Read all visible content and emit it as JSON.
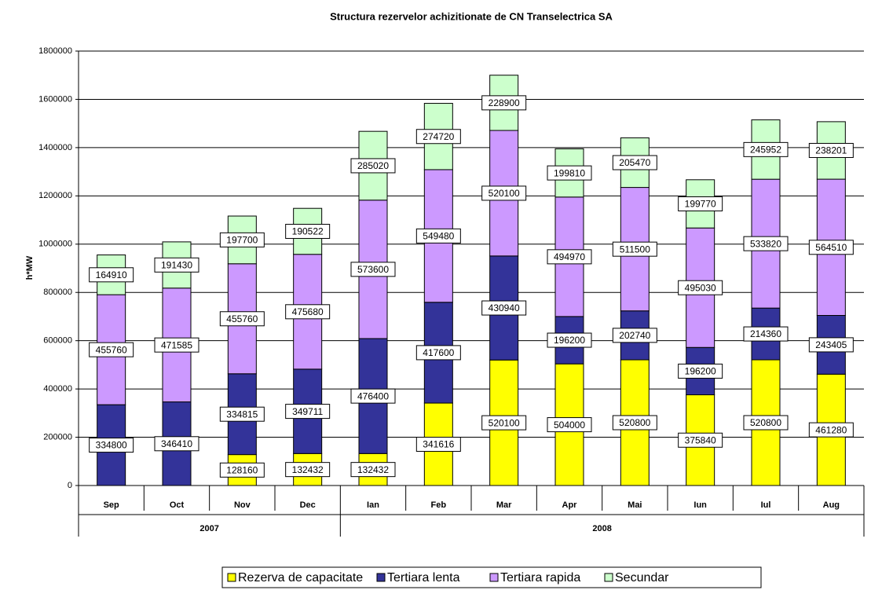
{
  "chart_data": {
    "type": "stacked_bar",
    "title": "Structura rezervelor achizitionate de CN Transelectrica SA",
    "y_label": "h*MW",
    "categories": [
      "Sep",
      "Oct",
      "Nov",
      "Dec",
      "Ian",
      "Feb",
      "Mar",
      "Apr",
      "Mai",
      "Iun",
      "Iul",
      "Aug"
    ],
    "category_groups": [
      "2007",
      "2007",
      "2007",
      "2007",
      "2008",
      "2008",
      "2008",
      "2008",
      "2008",
      "2008",
      "2008",
      "2008"
    ],
    "series": [
      {
        "name": "Rezerva de capacitate",
        "color": "#ffff00",
        "values": [
          null,
          null,
          128160,
          132432,
          132432,
          341616,
          520100,
          504000,
          520800,
          375840,
          520800,
          461280
        ]
      },
      {
        "name": "Tertiara lenta",
        "color": "#333399",
        "values": [
          334800,
          346410,
          334815,
          349711,
          476400,
          417600,
          430940,
          196200,
          202740,
          196200,
          214360,
          243405
        ]
      },
      {
        "name": "Tertiara rapida",
        "color": "#cc99ff",
        "values": [
          455760,
          471585,
          455760,
          475680,
          573600,
          549480,
          520100,
          494970,
          511500,
          495030,
          533820,
          564510
        ]
      },
      {
        "name": "Secundar",
        "color": "#ccffcc",
        "values": [
          164910,
          191430,
          197700,
          190522,
          285020,
          274720,
          228900,
          199810,
          205470,
          199770,
          245952,
          238201
        ]
      }
    ],
    "ylim": [
      0,
      1800000
    ],
    "yticks": [
      0,
      200000,
      400000,
      600000,
      800000,
      1000000,
      1200000,
      1400000,
      1600000,
      1800000
    ],
    "grid": true
  }
}
